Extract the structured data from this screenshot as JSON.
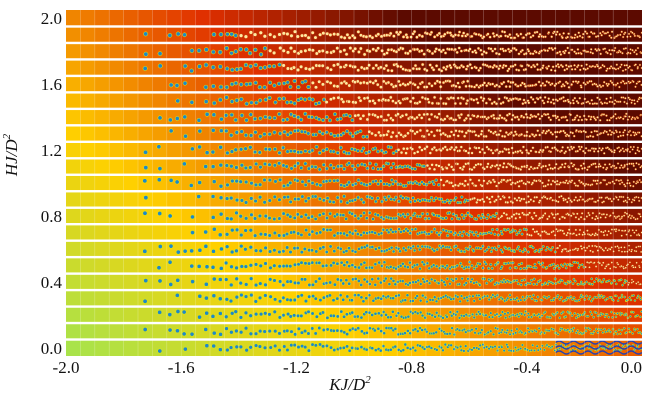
{
  "chart_data": {
    "type": "heatmap",
    "title": "",
    "xlabel": {
      "text": "KJ/D",
      "superscript": "2"
    },
    "ylabel": {
      "text": "HJ/D",
      "superscript": "2"
    },
    "xlim": [
      -2.0,
      0.0
    ],
    "ylim": [
      0.0,
      2.0
    ],
    "xticks": [
      -2.0,
      -1.6,
      -1.2,
      -0.8,
      -0.4,
      0.0
    ],
    "yticks": [
      0.0,
      0.4,
      0.8,
      1.2,
      1.6,
      2.0
    ],
    "xtick_labels": [
      "-2.0",
      "-1.6",
      "-1.2",
      "-0.8",
      "-0.4",
      "0.0"
    ],
    "ytick_labels": [
      "0.0",
      "0.4",
      "0.8",
      "1.2",
      "1.6",
      "2.0"
    ],
    "grid": {
      "columns": 40,
      "rows": 21,
      "x_step": 0.05,
      "y_step": 0.1
    },
    "row_separators": "white horizontal gap between each H row",
    "colormap": "green (low K, low H) through yellow and orange to dark red (K near 0, high H)",
    "colors": {
      "low": "#8fe860",
      "mid": "#ffd000",
      "high": "#e03000",
      "saturated": "#5c0a00",
      "vortex_core": "#1e88c8",
      "stripe": "#2840b0",
      "row_gap": "#ffffff",
      "cell_line": "#ffffff"
    },
    "textured_region": {
      "description": "skyrmion / vortex textures appear for K > about -1.75 and grow denser toward K = 0; stripe domains at H = 0 near K = 0",
      "onset_K_low_H": -1.75,
      "onset_K_high_H": -1.72,
      "upper_H_limit": 2.0
    }
  }
}
